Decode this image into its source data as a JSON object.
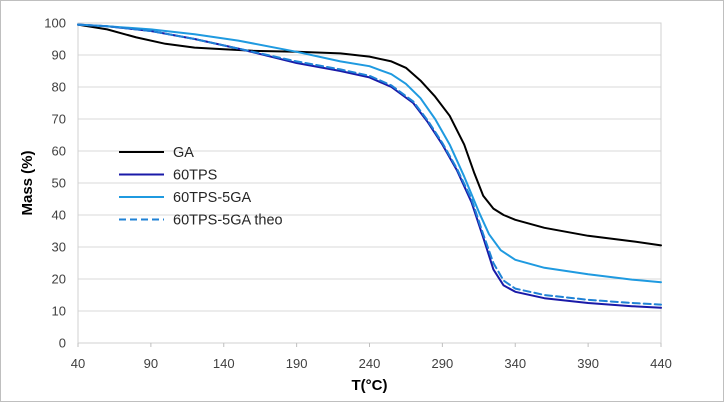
{
  "chart_data": {
    "type": "line",
    "title": "",
    "xlabel": "T(°C)",
    "ylabel": "Mass (%)",
    "xlim": [
      40,
      440
    ],
    "ylim": [
      0,
      100
    ],
    "xticks": [
      40,
      90,
      140,
      190,
      240,
      290,
      340,
      390,
      440
    ],
    "yticks": [
      0,
      10,
      20,
      30,
      40,
      50,
      60,
      70,
      80,
      90,
      100
    ],
    "grid": "horizontal",
    "legend_position": "left-middle",
    "series": [
      {
        "name": "GA",
        "color": "#000000",
        "dash": "solid",
        "x": [
          40,
          60,
          80,
          100,
          120,
          140,
          160,
          190,
          220,
          240,
          255,
          265,
          275,
          285,
          295,
          305,
          312,
          318,
          325,
          332,
          340,
          360,
          390,
          420,
          440
        ],
        "y": [
          99.5,
          98,
          95.5,
          93.5,
          92.3,
          91.8,
          91.3,
          91,
          90.5,
          89.5,
          88,
          86,
          82,
          77,
          71,
          62,
          53,
          46,
          42,
          40,
          38.5,
          36,
          33.5,
          31.8,
          30.5
        ]
      },
      {
        "name": "60TPS",
        "color": "#1a1aa8",
        "dash": "solid",
        "x": [
          40,
          60,
          90,
          120,
          150,
          190,
          220,
          240,
          255,
          270,
          280,
          290,
          300,
          310,
          318,
          325,
          332,
          340,
          360,
          390,
          420,
          440
        ],
        "y": [
          99.5,
          99,
          97.5,
          95,
          92,
          87.5,
          85,
          83,
          80,
          75,
          69,
          62,
          54,
          44,
          33,
          23,
          18,
          16,
          14,
          12.5,
          11.5,
          11
        ]
      },
      {
        "name": "60TPS-5GA",
        "color": "#1f9ae0",
        "dash": "solid",
        "x": [
          40,
          60,
          90,
          120,
          150,
          190,
          220,
          240,
          255,
          265,
          275,
          285,
          295,
          305,
          315,
          322,
          330,
          340,
          360,
          390,
          420,
          440
        ],
        "y": [
          99.5,
          99,
          98,
          96.5,
          94.5,
          91,
          88,
          86.5,
          84,
          81,
          76.5,
          70,
          62,
          52,
          41,
          34,
          29,
          26,
          23.5,
          21.5,
          19.8,
          19
        ]
      },
      {
        "name": "60TPS-5GA theo",
        "color": "#1f82d6",
        "dash": "dashed",
        "x": [
          40,
          60,
          90,
          120,
          150,
          190,
          220,
          240,
          255,
          270,
          280,
          290,
          300,
          310,
          318,
          325,
          332,
          340,
          360,
          390,
          420,
          440
        ],
        "y": [
          99.5,
          99,
          97.5,
          95,
          92,
          88,
          85.5,
          83.5,
          80.5,
          75.5,
          69.5,
          62.5,
          54.5,
          45,
          34,
          25,
          19.5,
          17,
          15,
          13.5,
          12.5,
          12
        ]
      }
    ]
  }
}
